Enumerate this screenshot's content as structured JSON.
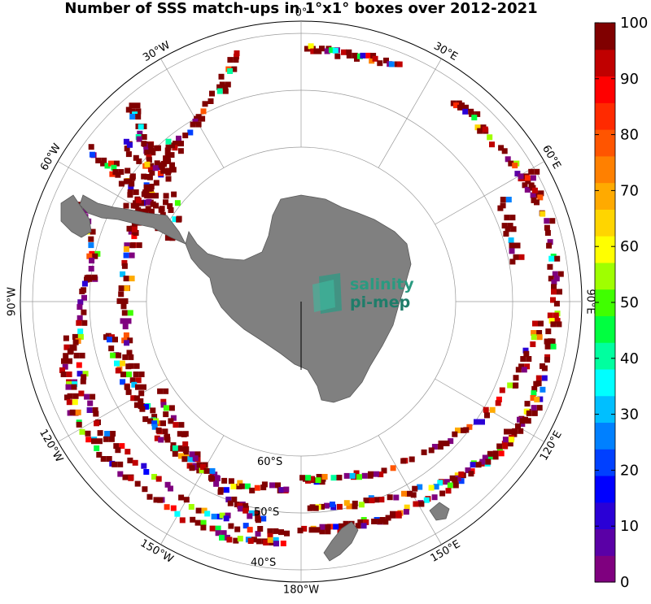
{
  "title": "Number of SSS match-ups in 1°x1° boxes over 2012-2021",
  "lon_labels": [
    "0°",
    "30°E",
    "60°E",
    "90°E",
    "120°E",
    "150°E",
    "180°W",
    "150°W",
    "120°W",
    "90°W",
    "60°W",
    "30°W"
  ],
  "lat_labels": [
    "60°S",
    "50°S",
    "40°S"
  ],
  "colorbar": {
    "ticks": [
      "0",
      "10",
      "20",
      "30",
      "40",
      "50",
      "60",
      "70",
      "80",
      "90",
      "100"
    ],
    "min": 0,
    "max": 100,
    "colors": [
      "#7f007f",
      "#5a00a6",
      "#2a00d6",
      "#0000ff",
      "#0040ff",
      "#0080ff",
      "#00bfff",
      "#00ffff",
      "#00ff9f",
      "#00ff40",
      "#40ff00",
      "#9fff00",
      "#ffff00",
      "#ffd500",
      "#ffaa00",
      "#ff8000",
      "#ff5500",
      "#ff2a00",
      "#ff0000",
      "#c00000",
      "#800000"
    ]
  },
  "logo": {
    "line1": "salinity",
    "line2": "pi-mep"
  },
  "map": {
    "projection": "south-polar-stereographic",
    "land_color": "#808080",
    "outer_latitude_visible": "~40°S"
  }
}
